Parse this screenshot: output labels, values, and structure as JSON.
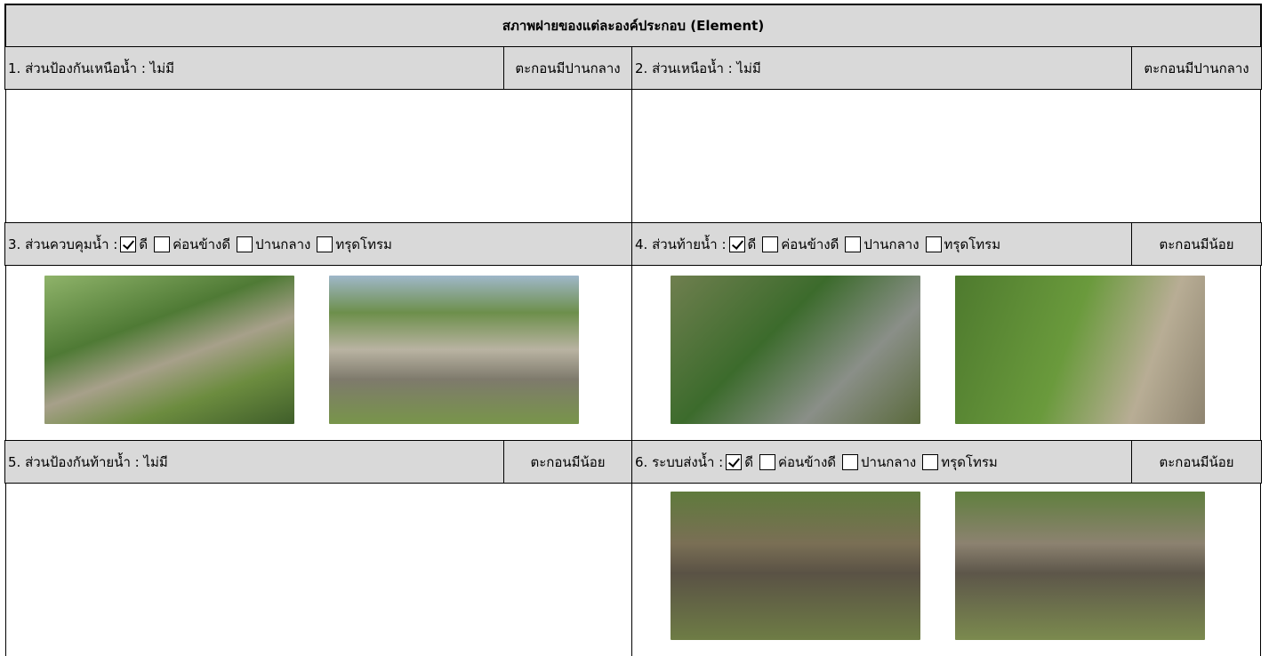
{
  "header": {
    "title": "สภาพฝายของแต่ละองค์ประกอบ (Element)"
  },
  "sections": [
    {
      "label": "1. ส่วนป้องกันเหนือน้ำ : ไม่มี",
      "sediment": "ตะกอนมีปานกลาง"
    },
    {
      "label": "2. ส่วนเหนือน้ำ : ไม่มี",
      "sediment": "ตะกอนมีปานกลาง"
    },
    {
      "label": "3. ส่วนควบคุมน้ำ :",
      "options": [
        {
          "label": "ดี",
          "checked": true
        },
        {
          "label": "ค่อนข้างดี",
          "checked": false
        },
        {
          "label": "ปานกลาง",
          "checked": false
        },
        {
          "label": "ทรุดโทรม",
          "checked": false
        }
      ]
    },
    {
      "label": "4. ส่วนท้ายน้ำ :",
      "options": [
        {
          "label": "ดี",
          "checked": true
        },
        {
          "label": "ค่อนข้างดี",
          "checked": false
        },
        {
          "label": "ปานกลาง",
          "checked": false
        },
        {
          "label": "ทรุดโทรม",
          "checked": false
        }
      ],
      "sediment": "ตะกอนมีน้อย"
    },
    {
      "label": "5. ส่วนป้องกันท้ายน้ำ : ไม่มี",
      "sediment": "ตะกอนมีน้อย"
    },
    {
      "label": "6. ระบบส่งน้ำ :",
      "options": [
        {
          "label": "ดี",
          "checked": true
        },
        {
          "label": "ค่อนข้างดี",
          "checked": false
        },
        {
          "label": "ปานกลาง",
          "checked": false
        },
        {
          "label": "ทรุดโทรม",
          "checked": false
        }
      ],
      "sediment": "ตะกอนมีน้อย"
    }
  ]
}
